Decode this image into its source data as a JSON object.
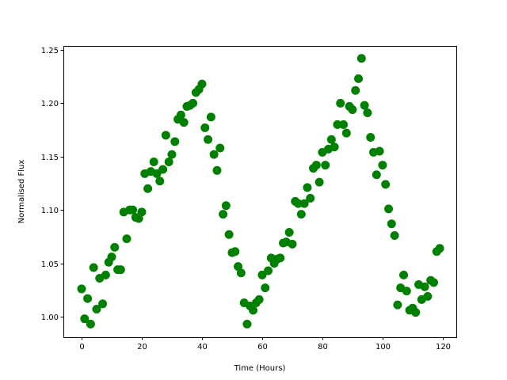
{
  "chart_data": {
    "type": "scatter",
    "title": "",
    "xlabel": "Time (Hours)",
    "ylabel": "Normalised Flux",
    "xlim": [
      -6.05,
      124.5
    ],
    "ylim": [
      0.9807,
      1.2537
    ],
    "xticks": [
      "0",
      "20",
      "40",
      "60",
      "80",
      "100",
      "120"
    ],
    "yticks": [
      "1.00",
      "1.05",
      "1.10",
      "1.15",
      "1.20",
      "1.25"
    ],
    "grid": false,
    "marker_color": "#008000",
    "series": [
      {
        "x": [
          0,
          1,
          2,
          3,
          4,
          5,
          6,
          7,
          8,
          9,
          10,
          11,
          12,
          13,
          14,
          15,
          16,
          17,
          18,
          19,
          20,
          21,
          22,
          23,
          24,
          25,
          26,
          27,
          28,
          29,
          30,
          31,
          32,
          33,
          34,
          35,
          36,
          37,
          38,
          39,
          40,
          41,
          42,
          43,
          44,
          45,
          46,
          47,
          48,
          49,
          50,
          51,
          52,
          53,
          54,
          55,
          56,
          57,
          58,
          59,
          60,
          61,
          62,
          63,
          64,
          65,
          66,
          67,
          68,
          69,
          70,
          71,
          72,
          73,
          74,
          75,
          76,
          77,
          78,
          79,
          80,
          81,
          82,
          83,
          84,
          85,
          86,
          87,
          88,
          89,
          90,
          91,
          92,
          93,
          94,
          95,
          96,
          97,
          98,
          99,
          100,
          101,
          102,
          103,
          104,
          105,
          106,
          107,
          108,
          109,
          110,
          111,
          112,
          113,
          114,
          115,
          116,
          117,
          118,
          119
        ],
        "y": [
          1.026,
          0.998,
          1.017,
          0.993,
          1.046,
          1.007,
          1.036,
          1.012,
          1.039,
          1.051,
          1.056,
          1.065,
          1.044,
          1.044,
          1.098,
          1.073,
          1.1,
          1.1,
          1.093,
          1.092,
          1.098,
          1.134,
          1.12,
          1.136,
          1.145,
          1.134,
          1.127,
          1.138,
          1.17,
          1.145,
          1.152,
          1.164,
          1.185,
          1.189,
          1.182,
          1.197,
          1.198,
          1.2,
          1.21,
          1.213,
          1.218,
          1.177,
          1.166,
          1.187,
          1.152,
          1.137,
          1.158,
          1.096,
          1.104,
          1.077,
          1.06,
          1.061,
          1.047,
          1.041,
          1.013,
          0.993,
          1.01,
          1.006,
          1.013,
          1.016,
          1.039,
          1.027,
          1.043,
          1.055,
          1.05,
          1.054,
          1.055,
          1.069,
          1.07,
          1.079,
          1.068,
          1.108,
          1.106,
          1.096,
          1.106,
          1.121,
          1.111,
          1.139,
          1.142,
          1.126,
          1.154,
          1.142,
          1.157,
          1.166,
          1.159,
          1.18,
          1.2,
          1.18,
          1.172,
          1.197,
          1.194,
          1.212,
          1.223,
          1.242,
          1.198,
          1.191,
          1.168,
          1.154,
          1.133,
          1.155,
          1.142,
          1.124,
          1.101,
          1.087,
          1.076,
          1.011,
          1.027,
          1.039,
          1.024,
          1.006,
          1.008,
          1.004,
          1.03,
          1.016,
          1.028,
          1.019,
          1.034,
          1.032,
          1.061,
          1.064
        ]
      }
    ]
  }
}
